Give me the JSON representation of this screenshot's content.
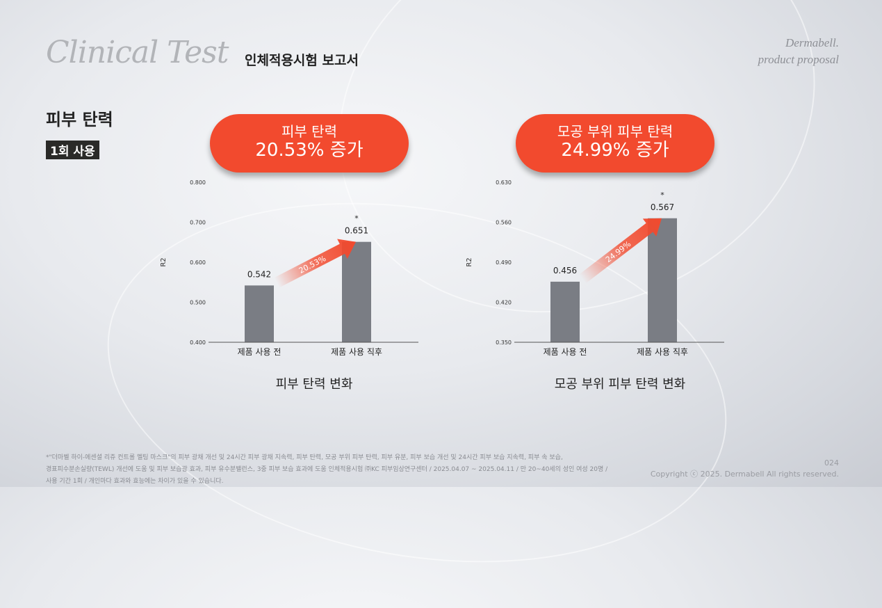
{
  "header": {
    "title": "Clinical Test",
    "subtitle": "인체적용시험 보고서",
    "brand_line1": "Dermabell.",
    "brand_line2": "product proposal"
  },
  "section": {
    "title": "피부 탄력",
    "badge": "1회 사용"
  },
  "pills": [
    {
      "line1": "피부 탄력",
      "line2": "20.53% 증가"
    },
    {
      "line1": "모공 부위 피부 탄력",
      "line2": "24.99% 증가"
    }
  ],
  "chart_data": [
    {
      "type": "bar",
      "title": "피부 탄력 변화",
      "ylabel": "R2",
      "categories": [
        "제품 사용 전",
        "제품 사용 직후"
      ],
      "values": [
        0.542,
        0.651
      ],
      "value_labels": [
        "0.542",
        "0.651"
      ],
      "ylim": [
        0.4,
        0.8
      ],
      "yticks": [
        "0.400",
        "0.500",
        "0.600",
        "0.700",
        "0.800"
      ],
      "significance": "*",
      "arrow_label": "20.53%"
    },
    {
      "type": "bar",
      "title": "모공 부위 피부 탄력 변화",
      "ylabel": "R2",
      "categories": [
        "제품 사용 전",
        "제품 사용 직후"
      ],
      "values": [
        0.456,
        0.567
      ],
      "value_labels": [
        "0.456",
        "0.567"
      ],
      "ylim": [
        0.35,
        0.63
      ],
      "yticks": [
        "0.350",
        "0.420",
        "0.490",
        "0.560",
        "0.630"
      ],
      "significance": "*",
      "arrow_label": "24.99%"
    }
  ],
  "colors": {
    "accent": "#f24a2e",
    "bar": "#7a7d84"
  },
  "footer": {
    "line1": "*\"더마벨 하이-에센셜 리쥬 컨트롤 멜팅 마스크\"의 피부 광채 개선 및 24시간 피부 광채 지속력, 피부 탄력, 모공 부위 피부 탄력, 피부 유분, 피부 보습 개선 및 24시간 피부 보습 지속력, 피부 속 보습,",
    "line2": "경표피수분손실량(TEWL) 개선에 도움 및 피부 보습광 효과, 피부 유수분밸런스, 3중 피부 보습 효과에 도움 인체적용시험 ㈜KC 피부임상연구센터 / 2025.04.07 ~ 2025.04.11 / 만 20~40세의 성인 여성 20명 /",
    "line3": "사용 기간 1회 / 개인마다 효과와 효능에는 차이가 있을 수 있습니다.",
    "page": "024",
    "copyright": "Copyright ⓒ 2025. Dermabell All rights reserved."
  }
}
